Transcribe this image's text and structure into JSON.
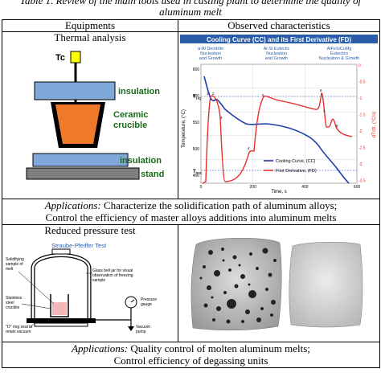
{
  "caption": {
    "line1": "Table 1. Review of the main tools used in casting plant to determine the quality of",
    "line2": "aluminum melt"
  },
  "headers": {
    "equipments": "Equipments",
    "observed": "Observed characteristics"
  },
  "row1": {
    "title": "Thermal analysis",
    "diagram": {
      "tc": "Tc",
      "insulation_top": "insulation",
      "crucible_l1": "Ceramic",
      "crucible_l2": "crucible",
      "insulation_bottom": "insulation",
      "stand": "stand"
    },
    "chart": {
      "title": "Cooling Curve (CC) and its First Derivative (FD)",
      "ann1_l1": "α-Al Dendrite",
      "ann1_l2": "Nucleation",
      "ann1_l3": "and Growth",
      "ann2_l1": "Al-Si Eutectic",
      "ann2_l2": "Nucleation",
      "ann2_l3": "and Growth",
      "ann3_l1": "AlFeSiCuMg",
      "ann3_l2": "Eutectics",
      "ann3_l3": "Nucleation & Growth",
      "ylabel_left": "Temperature, (°C)",
      "ylabel_right": "dT/dt, (°C/s)",
      "xlabel": "Time, s",
      "tliq": "T",
      "tliq_sub": "LIQ",
      "tsol": "T",
      "tsol_sub": "SOL",
      "legend_cc": "Cooling Curve, (CC)",
      "legend_fd": "First Derivative, (FD)",
      "yticks_left": [
        "650",
        "600",
        "550",
        "500",
        "450"
      ],
      "yticks_right": [
        "0",
        "-0.5",
        "-1",
        "-1.5",
        "-2",
        "-2.5",
        "-3",
        "-3.5"
      ],
      "xticks": [
        "0",
        "200",
        "400",
        "600"
      ],
      "point_labels": [
        "1",
        "2",
        "3",
        "4",
        "5",
        "6",
        "7",
        "8"
      ],
      "colors": {
        "cc": "#1f3fa8",
        "fd": "#e8302c"
      }
    },
    "apps_label": "Applications:",
    "apps_text1": " Characterize the solidification path of aluminum alloys;",
    "apps_text2": "Control the efficiency of master alloys additions into aluminum melts"
  },
  "row2": {
    "title": "Reduced pressure test",
    "diagram": {
      "title": "Straube-Pfeiffer Test",
      "sample_l1": "Solidifying",
      "sample_l2": "sample of",
      "sample_l3": "melt",
      "bell_l1": "Glass bell jar for visual",
      "bell_l2": "observation of freezing",
      "bell_l3": "sample",
      "crucible_l1": "Stainless",
      "crucible_l2": "steel",
      "crucible_l3": "crucible",
      "pressure_l1": "Pressure",
      "pressure_l2": "gauge",
      "vacuum_l1": "Vacuum",
      "vacuum_l2": "pump",
      "ring_l1": "\"O\" ring seal to",
      "ring_l2": "retain vacuum"
    },
    "apps_label": "Applications:",
    "apps_text1": " Quality control of molten aluminum melts;",
    "apps_text2": "Control efficiency of degassing units"
  }
}
